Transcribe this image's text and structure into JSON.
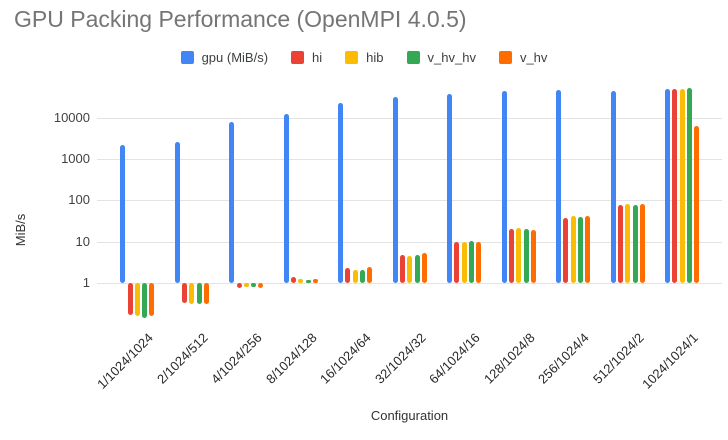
{
  "chart_data": {
    "type": "bar",
    "title": "GPU Packing Performance (OpenMPI 4.0.5)",
    "xlabel": "Configuration",
    "ylabel": "MiB/s",
    "log_scale_y": true,
    "yticks": [
      1,
      10,
      100,
      1000,
      10000
    ],
    "ylim": [
      0.1,
      60000
    ],
    "grid": "horizontal",
    "legend_position": "top",
    "categories": [
      "1/1024/1024",
      "2/1024/512",
      "4/1024/256",
      "8/1024/128",
      "16/1024/64",
      "32/1024/32",
      "64/1024/16",
      "128/1024/8",
      "256/1024/4",
      "512/1024/2",
      "1024/1024/1"
    ],
    "series": [
      {
        "name": "gpu (MiB/s)",
        "color": "#4285F4",
        "values": [
          2200,
          2600,
          8000,
          12500,
          23000,
          32000,
          38000,
          45000,
          47000,
          44000,
          50000
        ]
      },
      {
        "name": "hi",
        "color": "#EA4335",
        "values": [
          0.17,
          0.32,
          0.75,
          1.4,
          2.3,
          4.7,
          9.8,
          20,
          37,
          77,
          51000
        ]
      },
      {
        "name": "hib",
        "color": "#FBBC04",
        "values": [
          0.16,
          0.31,
          0.8,
          1.25,
          2.1,
          4.4,
          10,
          21,
          42,
          84,
          50000
        ]
      },
      {
        "name": "v_hv_hv",
        "color": "#34A853",
        "values": [
          0.145,
          0.31,
          0.8,
          1.2,
          2.1,
          4.7,
          10.5,
          20,
          40,
          76,
          52000
        ]
      },
      {
        "name": "v_hv",
        "color": "#FF6D01",
        "values": [
          0.16,
          0.31,
          0.75,
          1.25,
          2.5,
          5.2,
          10,
          19,
          42,
          80,
          6300
        ]
      }
    ],
    "styles": {
      "title_color": "#757575",
      "gridline_color": "#e3e3e3",
      "tick_label_color": "#424242",
      "background": "#ffffff"
    }
  }
}
